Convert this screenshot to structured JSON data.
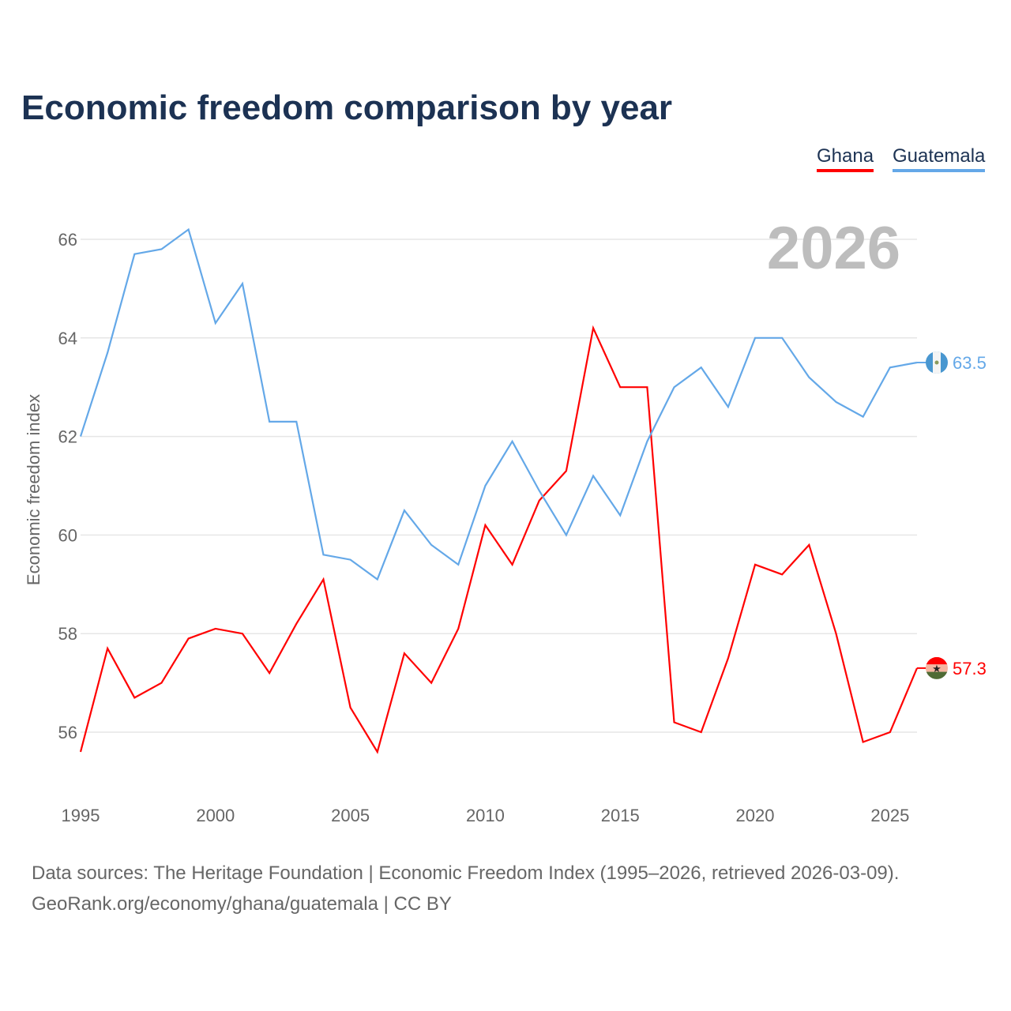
{
  "title": "Economic freedom comparison by year",
  "source_line1": "Data sources: The Heritage Foundation | Economic Freedom Index (1995–2026, retrieved 2026-03-09).",
  "source_line2": "GeoRank.org/economy/ghana/guatemala | CC BY",
  "chart_data": {
    "type": "line",
    "title": "Economic freedom comparison by year",
    "xlabel": "",
    "ylabel": "Economic freedom index",
    "year_watermark": "2026",
    "xlim": [
      1995,
      2026
    ],
    "ylim": [
      55,
      67
    ],
    "grid": true,
    "legend_position": "top-right",
    "x_ticks": [
      1995,
      2000,
      2005,
      2010,
      2015,
      2020,
      2025
    ],
    "y_ticks": [
      56,
      58,
      60,
      62,
      64,
      66
    ],
    "x": [
      1995,
      1996,
      1997,
      1998,
      1999,
      2000,
      2001,
      2002,
      2003,
      2004,
      2005,
      2006,
      2007,
      2008,
      2009,
      2010,
      2011,
      2012,
      2013,
      2014,
      2015,
      2016,
      2017,
      2018,
      2019,
      2020,
      2021,
      2022,
      2023,
      2024,
      2025,
      2026
    ],
    "series": [
      {
        "name": "Ghana",
        "color": "#ff0000",
        "end_label": "57.3",
        "flag": "ghana-flag",
        "values": [
          55.6,
          57.7,
          56.7,
          57.0,
          57.9,
          58.1,
          58.0,
          57.2,
          58.2,
          59.1,
          56.5,
          55.6,
          57.6,
          57.0,
          58.1,
          60.2,
          59.4,
          60.7,
          61.3,
          64.2,
          63.0,
          63.0,
          56.2,
          56.0,
          57.5,
          59.4,
          59.2,
          59.8,
          58.0,
          55.8,
          56.0,
          57.3
        ]
      },
      {
        "name": "Guatemala",
        "color": "#64a8e8",
        "end_label": "63.5",
        "flag": "guatemala-flag",
        "values": [
          62.0,
          63.7,
          65.7,
          65.8,
          66.2,
          64.3,
          65.1,
          62.3,
          62.3,
          59.6,
          59.5,
          59.1,
          60.5,
          59.8,
          59.4,
          61.0,
          61.9,
          60.9,
          60.0,
          61.2,
          60.4,
          61.9,
          63.0,
          63.4,
          62.6,
          64.0,
          64.0,
          63.2,
          62.7,
          62.4,
          63.4,
          63.5
        ]
      }
    ]
  }
}
